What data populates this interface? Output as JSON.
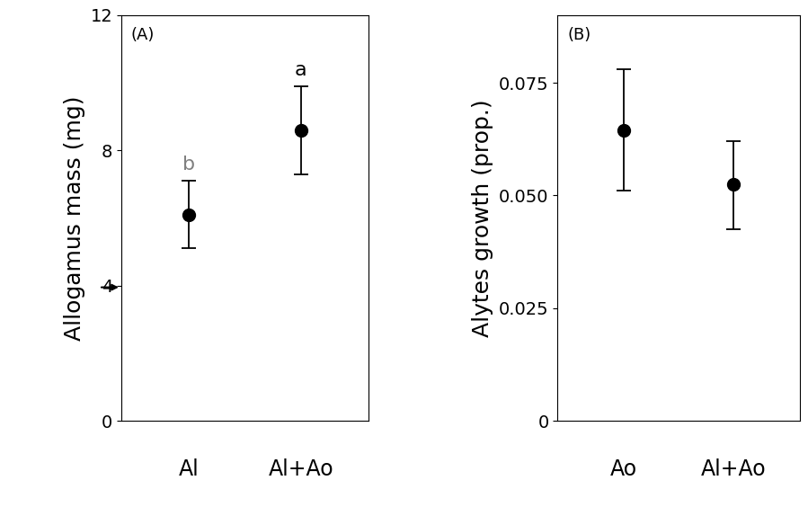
{
  "chart_data": [
    {
      "type": "errorbar",
      "panel": "(A)",
      "y_label": "Allogamus mass (mg)",
      "categories": [
        "Al",
        "Al+Ao"
      ],
      "values": [
        6.1,
        8.6
      ],
      "lower": [
        5.1,
        7.3
      ],
      "upper": [
        7.1,
        9.9
      ],
      "annotations": [
        "b",
        "a"
      ],
      "reference_value": 3.95,
      "ylim": [
        0,
        12
      ],
      "yticks": [
        0,
        4,
        8,
        12
      ],
      "color": "#000000"
    },
    {
      "type": "errorbar",
      "panel": "(B)",
      "y_label": "Alytes growth (prop.)",
      "categories": [
        "Ao",
        "Al+Ao"
      ],
      "values": [
        0.0645,
        0.0525
      ],
      "lower": [
        0.051,
        0.0425
      ],
      "upper": [
        0.078,
        0.062
      ],
      "ylim": [
        0,
        0.09
      ],
      "yticks": [
        0,
        {
          "value": 0.025,
          "label": "0.025"
        },
        {
          "value": 0.05,
          "label": "0.050"
        },
        {
          "value": 0.075,
          "label": "0.075"
        }
      ],
      "color": "#000000"
    }
  ]
}
